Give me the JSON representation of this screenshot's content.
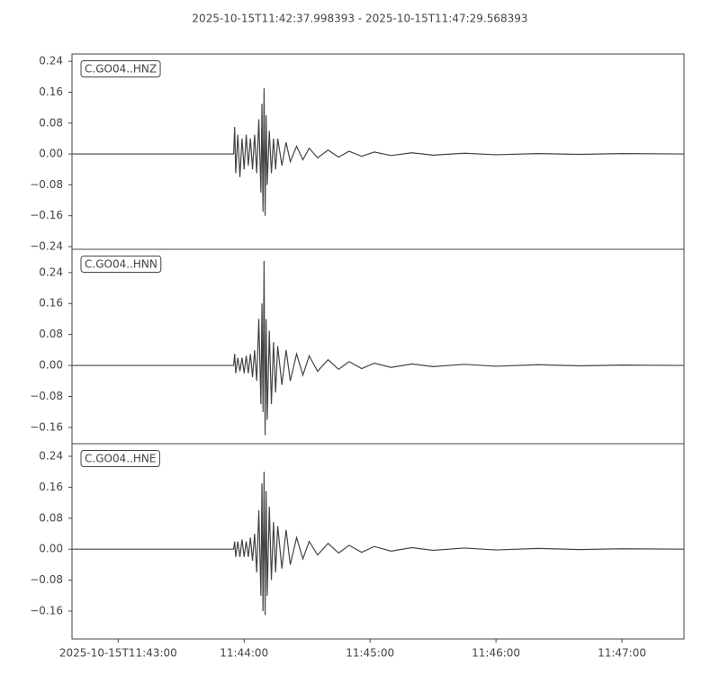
{
  "title": "2025-10-15T11:42:37.998393  -  2025-10-15T11:47:29.568393",
  "chart_data": [
    {
      "type": "line",
      "label": "C.GO04..HNZ",
      "color": "#444444",
      "xlim": [
        -22.0016,
        269.5684
      ],
      "ylim": [
        -0.247,
        0.259
      ],
      "yticks": [
        0.24,
        0.16,
        0.08,
        {
          "value": 0,
          "label": "0.00"
        },
        {
          "value": -0.08,
          "label": "−0.08"
        },
        {
          "value": -0.16,
          "label": "−0.16"
        },
        {
          "value": -0.24,
          "label": "−0.24"
        }
      ],
      "x": [
        -22,
        55,
        55.5,
        56,
        57,
        58,
        59,
        60,
        61,
        62,
        63,
        64,
        65,
        66,
        67,
        68,
        68.5,
        69,
        69.5,
        70,
        70.5,
        71,
        72,
        73,
        74,
        75,
        76,
        78,
        80,
        82,
        85,
        88,
        91,
        95,
        100,
        105,
        110,
        116,
        122,
        130,
        140,
        150,
        165,
        180,
        200,
        220,
        240,
        269.5
      ],
      "values": [
        0,
        0,
        0.07,
        -0.05,
        0.05,
        -0.06,
        0.04,
        -0.04,
        0.05,
        -0.03,
        0.04,
        -0.04,
        0.05,
        -0.05,
        0.09,
        -0.1,
        0.13,
        -0.15,
        0.17,
        -0.16,
        0.1,
        -0.08,
        0.06,
        -0.05,
        0.04,
        -0.04,
        0.04,
        -0.03,
        0.03,
        -0.02,
        0.02,
        -0.015,
        0.015,
        -0.01,
        0.01,
        -0.008,
        0.007,
        -0.006,
        0.005,
        -0.004,
        0.003,
        -0.003,
        0.002,
        -0.002,
        0.001,
        -0.001,
        0.001,
        0
      ]
    },
    {
      "type": "line",
      "label": "C.GO04..HNN",
      "color": "#444444",
      "xlim": [
        -22.0016,
        269.5684
      ],
      "ylim": [
        -0.202,
        0.3
      ],
      "yticks": [
        0.24,
        0.16,
        0.08,
        {
          "value": 0,
          "label": "0.00"
        },
        {
          "value": -0.08,
          "label": "−0.08"
        },
        {
          "value": -0.16,
          "label": "−0.16"
        }
      ],
      "x": [
        -22,
        55,
        55.5,
        56,
        57,
        58,
        59,
        60,
        61,
        62,
        63,
        64,
        65,
        66,
        67,
        68,
        68.5,
        69,
        69.5,
        70,
        70.5,
        71,
        72,
        73,
        74,
        75,
        76,
        78,
        80,
        82,
        85,
        88,
        91,
        95,
        100,
        105,
        110,
        116,
        122,
        130,
        140,
        150,
        165,
        180,
        200,
        220,
        240,
        269.5
      ],
      "values": [
        0,
        0,
        0.03,
        -0.02,
        0.02,
        -0.015,
        0.02,
        -0.02,
        0.025,
        -0.02,
        0.03,
        -0.03,
        0.04,
        -0.04,
        0.12,
        -0.1,
        0.16,
        -0.12,
        0.27,
        -0.18,
        0.12,
        -0.14,
        0.09,
        -0.1,
        0.06,
        -0.07,
        0.05,
        -0.05,
        0.04,
        -0.04,
        0.03,
        -0.025,
        0.025,
        -0.015,
        0.015,
        -0.01,
        0.01,
        -0.008,
        0.006,
        -0.005,
        0.004,
        -0.003,
        0.003,
        -0.002,
        0.002,
        -0.001,
        0.001,
        0
      ]
    },
    {
      "type": "line",
      "label": "C.GO04..HNE",
      "color": "#444444",
      "xlim": [
        -22.0016,
        269.5684
      ],
      "ylim": [
        -0.232,
        0.2725
      ],
      "yticks": [
        0.24,
        0.16,
        0.08,
        {
          "value": 0,
          "label": "0.00"
        },
        {
          "value": -0.08,
          "label": "−0.08"
        },
        {
          "value": -0.16,
          "label": "−0.16"
        }
      ],
      "xticks": [
        {
          "value": 0,
          "label": "2025-10-15T11:43:00"
        },
        {
          "value": 60,
          "label": "11:44:00"
        },
        {
          "value": 120,
          "label": "11:45:00"
        },
        {
          "value": 180,
          "label": "11:46:00"
        },
        {
          "value": 240,
          "label": "11:47:00"
        }
      ],
      "x": [
        -22,
        55,
        55.5,
        56,
        57,
        58,
        59,
        60,
        61,
        62,
        63,
        64,
        65,
        66,
        67,
        68,
        68.5,
        69,
        69.5,
        70,
        70.5,
        71,
        72,
        73,
        74,
        75,
        76,
        78,
        80,
        82,
        85,
        88,
        91,
        95,
        100,
        105,
        110,
        116,
        122,
        130,
        140,
        150,
        165,
        180,
        200,
        220,
        240,
        269.5
      ],
      "values": [
        0,
        0,
        0.02,
        -0.02,
        0.02,
        -0.02,
        0.025,
        -0.02,
        0.02,
        -0.02,
        0.03,
        -0.03,
        0.04,
        -0.06,
        0.1,
        -0.12,
        0.17,
        -0.16,
        0.2,
        -0.17,
        0.15,
        -0.12,
        0.11,
        -0.08,
        0.07,
        -0.06,
        0.06,
        -0.05,
        0.05,
        -0.04,
        0.03,
        -0.025,
        0.02,
        -0.015,
        0.015,
        -0.01,
        0.01,
        -0.008,
        0.007,
        -0.005,
        0.004,
        -0.003,
        0.003,
        -0.002,
        0.002,
        -0.001,
        0.001,
        0
      ]
    }
  ]
}
